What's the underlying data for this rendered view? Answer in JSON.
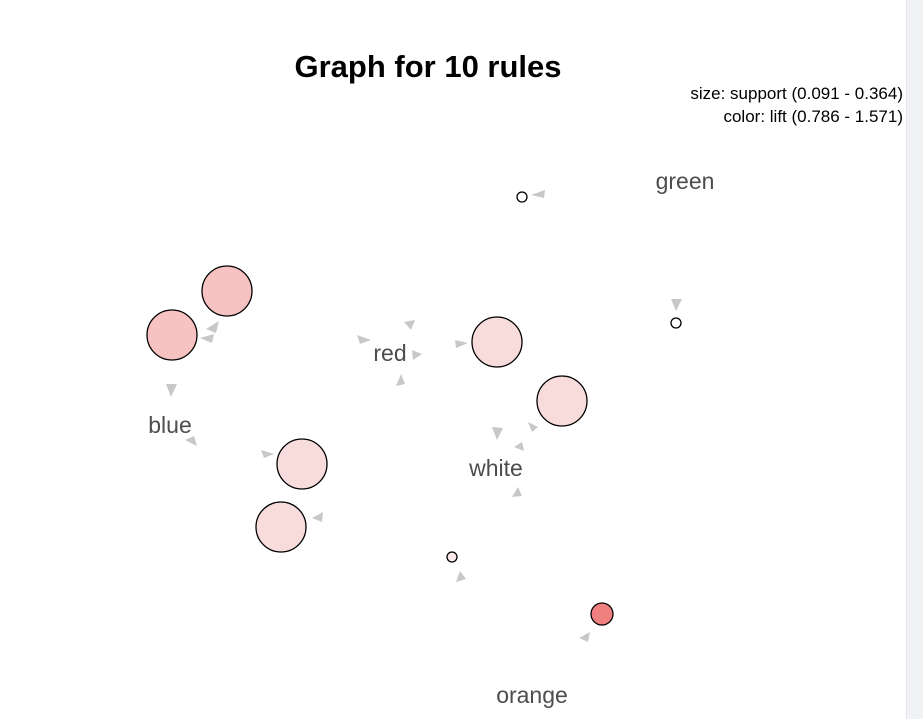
{
  "plot": {
    "title": "Graph for 10 rules",
    "legend_size": "size: support (0.091 - 0.364)",
    "legend_color": "color: lift (0.786 - 1.571)"
  },
  "items": [
    {
      "id": "green",
      "label": "green"
    },
    {
      "id": "red",
      "label": "red"
    },
    {
      "id": "blue",
      "label": "blue"
    },
    {
      "id": "white",
      "label": "white"
    },
    {
      "id": "orange",
      "label": "orange"
    }
  ],
  "colors": {
    "lift_high": "#f08080",
    "lift_mid": "#f5c4c4",
    "lift_low": "#f8dcdc",
    "edge": "#c8c8c8",
    "label": "#4d4d4d"
  }
}
